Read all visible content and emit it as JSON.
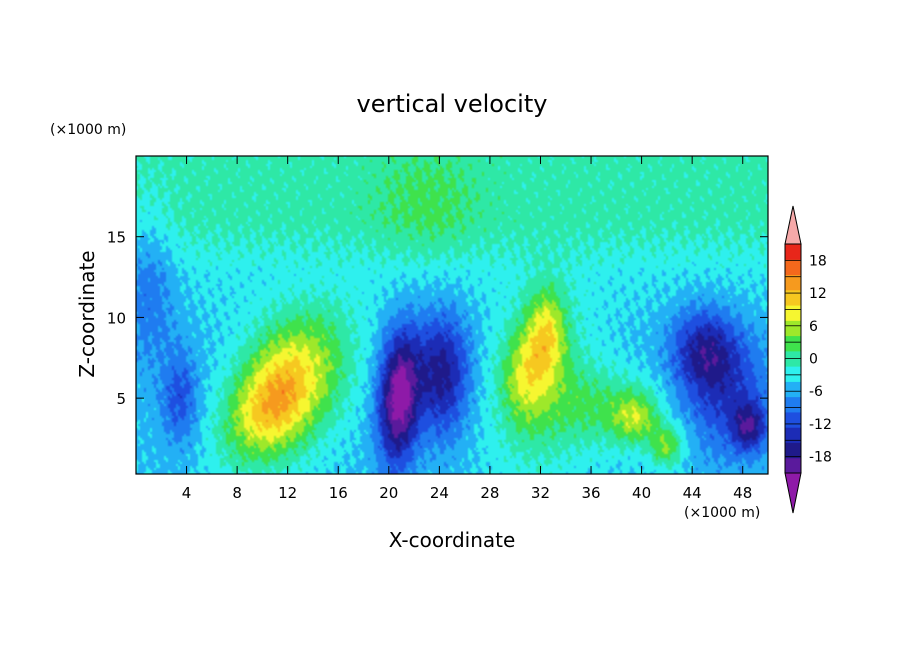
{
  "chart_data": {
    "type": "heatmap",
    "title": "vertical velocity",
    "xlabel": "X-coordinate",
    "ylabel": "Z-coordinate",
    "x_unit_label": "(×1000 m)",
    "y_unit_label": "(×1000 m)",
    "xlim": [
      0,
      50
    ],
    "ylim": [
      0.3,
      20
    ],
    "x_ticks": [
      4,
      8,
      12,
      16,
      20,
      24,
      28,
      32,
      36,
      40,
      44,
      48
    ],
    "y_ticks": [
      5,
      10,
      15
    ],
    "colorbar": {
      "levels": [
        -21,
        -18,
        -15,
        -12,
        -9,
        -6,
        -3,
        0,
        3,
        6,
        9,
        12,
        15,
        18,
        21
      ],
      "tick_labels": [
        18,
        12,
        6,
        0,
        -6,
        -12,
        -18
      ],
      "colors": [
        "#5a1a9c",
        "#1f1a8a",
        "#1c2cb6",
        "#1e4fe0",
        "#1f7cf0",
        "#23b0f5",
        "#2ef0ee",
        "#2ee8a6",
        "#3fe24c",
        "#9ee82a",
        "#f6f630",
        "#f6c820",
        "#f69a1e",
        "#f4681c",
        "#e8261a"
      ],
      "under_color": "#8e1aa8",
      "over_color": "#f6a9a9"
    },
    "features": [
      {
        "x": 10.5,
        "z": 4.6,
        "value": 15,
        "sx": 2.3,
        "sz": 2.4,
        "tilt": 0.35
      },
      {
        "x": 13.5,
        "z": 5.6,
        "value": 7,
        "sx": 2.6,
        "sz": 3.0,
        "tilt": 0.3
      },
      {
        "x": 12.5,
        "z": 8.5,
        "value": 4,
        "sx": 3.0,
        "sz": 2.0,
        "tilt": 0.2
      },
      {
        "x": 20.8,
        "z": 5.0,
        "value": -20,
        "sx": 1.1,
        "sz": 2.8,
        "tilt": 0.05
      },
      {
        "x": 24.2,
        "z": 6.5,
        "value": -13,
        "sx": 1.5,
        "sz": 2.6,
        "tilt": 0.0
      },
      {
        "x": 32.5,
        "z": 9.0,
        "value": 11,
        "sx": 1.1,
        "sz": 1.9,
        "tilt": 0.0
      },
      {
        "x": 30.8,
        "z": 6.5,
        "value": 8,
        "sx": 1.3,
        "sz": 2.0,
        "tilt": 0.0
      },
      {
        "x": 32.0,
        "z": 5.5,
        "value": 6,
        "sx": 2.8,
        "sz": 4.0,
        "tilt": 0.1
      },
      {
        "x": 37.5,
        "z": 4.3,
        "value": 6,
        "sx": 3.2,
        "sz": 1.8,
        "tilt": -0.3
      },
      {
        "x": 39.5,
        "z": 3.8,
        "value": 8,
        "sx": 1.2,
        "sz": 1.0,
        "tilt": 0.0
      },
      {
        "x": 42.0,
        "z": 2.0,
        "value": 9,
        "sx": 0.9,
        "sz": 0.9,
        "tilt": 0.0
      },
      {
        "x": 45.0,
        "z": 8.0,
        "value": -11,
        "sx": 1.8,
        "sz": 1.8,
        "tilt": 0.0
      },
      {
        "x": 46.8,
        "z": 5.0,
        "value": -8,
        "sx": 2.5,
        "sz": 2.5,
        "tilt": 0.0
      },
      {
        "x": 48.5,
        "z": 3.2,
        "value": -11,
        "sx": 0.9,
        "sz": 1.0,
        "tilt": 0.0
      },
      {
        "x": 3.5,
        "z": 5.0,
        "value": -7,
        "sx": 1.0,
        "sz": 2.0,
        "tilt": 0.0
      },
      {
        "x": 23.0,
        "z": 17.0,
        "value": 3,
        "sx": 3.0,
        "sz": 2.5,
        "tilt": 0.0
      },
      {
        "x": 1.0,
        "z": 12.0,
        "value": -5,
        "sx": 1.5,
        "sz": 3.5,
        "tilt": 0.0
      }
    ]
  }
}
